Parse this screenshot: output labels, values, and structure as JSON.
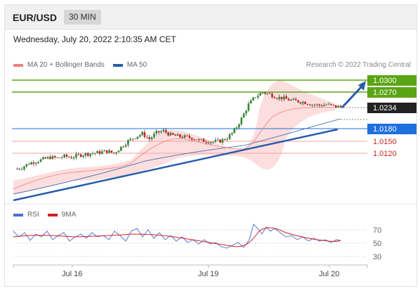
{
  "header": {
    "pair": "EUR/USD",
    "timeframe": "30 MIN"
  },
  "datetime": "Wednesday, July 20, 2022 2:10:35 AM CET",
  "legend": {
    "items": [
      {
        "label": "MA 20 + Bollinger Bands",
        "color": "#f08080"
      },
      {
        "label": "MA 50",
        "color": "#2a5caa"
      }
    ],
    "credit": "Research © 2022 Trading Central"
  },
  "levels": [
    {
      "value": "1.0300",
      "kind": "resistance",
      "color": "#5aa514"
    },
    {
      "value": "1.0270",
      "kind": "resistance",
      "color": "#5aa514"
    },
    {
      "value": "1.0234",
      "kind": "current",
      "color": "#222222"
    },
    {
      "value": "1.0180",
      "kind": "pivot",
      "color": "#1e6fe0"
    },
    {
      "value": "1.0150",
      "kind": "support",
      "color": "#cc2222"
    },
    {
      "value": "1.0120",
      "kind": "support",
      "color": "#cc2222"
    }
  ],
  "rsi_panel": {
    "legend": [
      {
        "label": "RSI",
        "color": "#4a6fd1"
      },
      {
        "label": "9MA",
        "color": "#d02020"
      }
    ],
    "ticks": [
      "70",
      "50",
      "30"
    ]
  },
  "x_labels": [
    "Jul 16",
    "Jul 19",
    "Jul 20"
  ],
  "chart_data": {
    "type": "candlestick",
    "instrument": "EUR/USD",
    "interval": "30 MIN",
    "y_levels": [
      1.03,
      1.027,
      1.0234,
      1.018,
      1.015,
      1.012
    ],
    "x_labels": [
      "Jul 16",
      "Jul 19",
      "Jul 20"
    ],
    "close_path": [
      1.008,
      1.0085,
      1.0095,
      1.01,
      1.0105,
      1.011,
      1.0108,
      1.0112,
      1.011,
      1.0115,
      1.0118,
      1.012,
      1.0122,
      1.0125,
      1.012,
      1.0135,
      1.015,
      1.016,
      1.0168,
      1.0155,
      1.017,
      1.0175,
      1.0165,
      1.0162,
      1.016,
      1.0158,
      1.0152,
      1.015,
      1.0148,
      1.015,
      1.0158,
      1.0175,
      1.0205,
      1.024,
      1.026,
      1.027,
      1.0265,
      1.0258,
      1.0255,
      1.025,
      1.0248,
      1.0245,
      1.024,
      1.0238,
      1.024,
      1.0236,
      1.0234
    ],
    "rsi_ylim": [
      30,
      70
    ]
  }
}
